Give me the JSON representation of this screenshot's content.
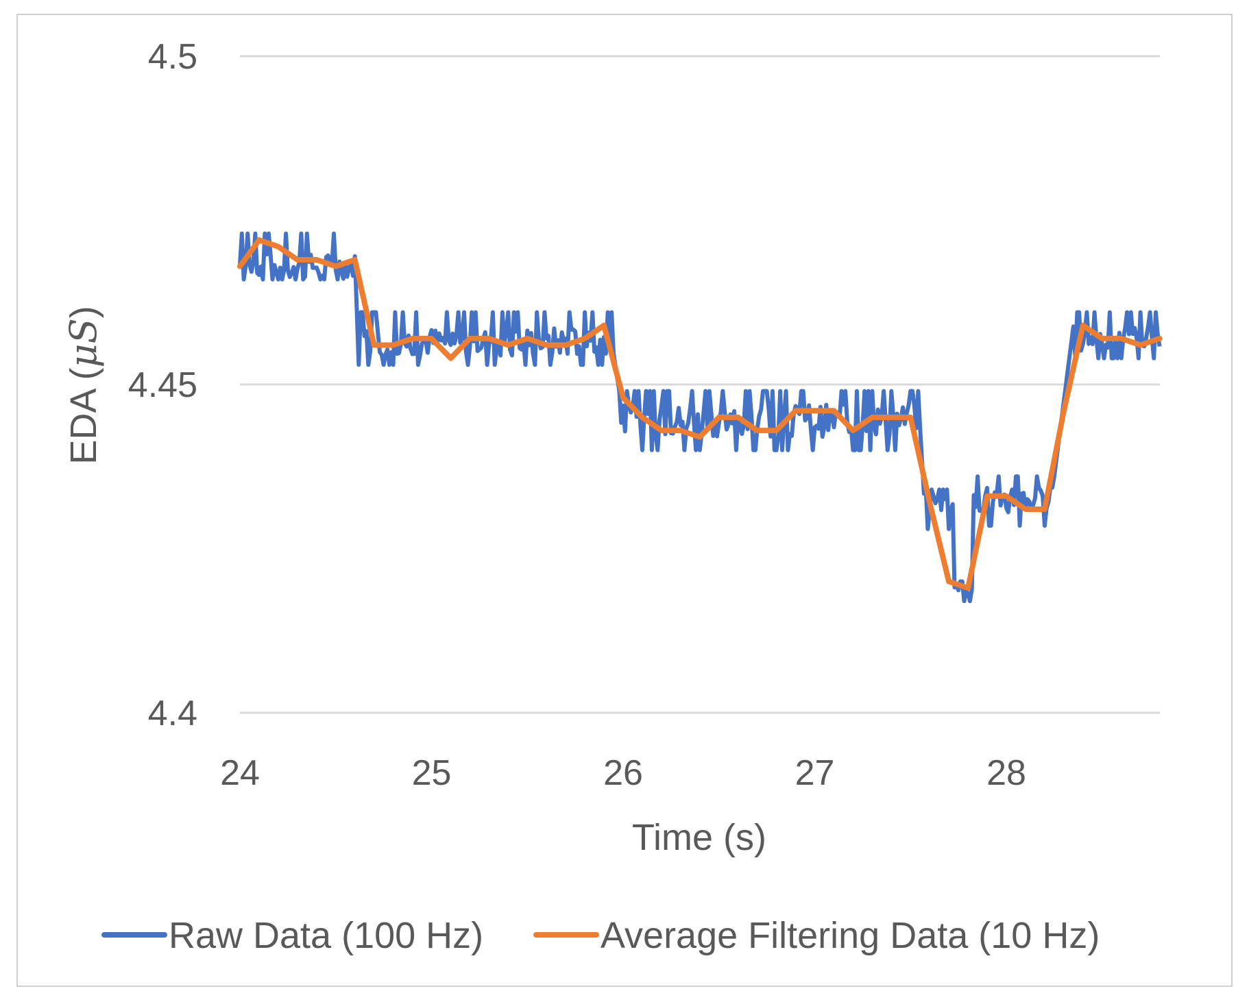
{
  "chart_data": {
    "type": "line",
    "title": "",
    "xlabel": "Time (s)",
    "ylabel": "EDA (μS)",
    "ylabel_prefix": "EDA (",
    "ylabel_unit": "μS",
    "ylabel_suffix": ")",
    "xlim": [
      24,
      28.8
    ],
    "ylim": [
      4.4,
      4.5
    ],
    "xticks": [
      24,
      25,
      26,
      27,
      28
    ],
    "xtick_labels": [
      "24",
      "25",
      "26",
      "27",
      "28"
    ],
    "yticks": [
      4.4,
      4.45,
      4.5
    ],
    "ytick_labels": [
      "4.4",
      "4.45",
      "4.5"
    ],
    "grid": "horizontal",
    "legend_position": "bottom",
    "series": [
      {
        "name": "Raw Data (100 Hz)",
        "color": "#4472c4",
        "kind": "step",
        "segments": [
          {
            "x0": 24.0,
            "x1": 24.6,
            "level": 4.468,
            "high": 4.473,
            "low": 4.466
          },
          {
            "x0": 24.62,
            "x1": 25.95,
            "level": 4.4565,
            "high": 4.461,
            "low": 4.453
          },
          {
            "x0": 25.98,
            "x1": 27.55,
            "level": 4.4445,
            "high": 4.449,
            "low": 4.44
          },
          {
            "x0": 27.57,
            "x1": 27.72,
            "level": 4.432,
            "high": 4.434,
            "low": 4.428
          },
          {
            "x0": 27.73,
            "x1": 27.82,
            "level": 4.419,
            "high": 4.42,
            "low": 4.417
          },
          {
            "x0": 27.83,
            "x1": 28.25,
            "level": 4.4325,
            "high": 4.436,
            "low": 4.4285
          },
          {
            "x0": 28.35,
            "x1": 28.8,
            "level": 4.457,
            "high": 4.461,
            "low": 4.454
          }
        ]
      },
      {
        "name": "Average Filtering Data (10 Hz)",
        "color": "#ed7d31",
        "kind": "line",
        "x": [
          24.0,
          24.1,
          24.2,
          24.3,
          24.4,
          24.5,
          24.6,
          24.7,
          24.8,
          24.9,
          25.0,
          25.1,
          25.2,
          25.3,
          25.4,
          25.5,
          25.6,
          25.7,
          25.8,
          25.9,
          26.0,
          26.1,
          26.2,
          26.3,
          26.4,
          26.5,
          26.6,
          26.7,
          26.8,
          26.9,
          27.0,
          27.1,
          27.2,
          27.3,
          27.4,
          27.5,
          27.6,
          27.7,
          27.8,
          27.9,
          28.0,
          28.1,
          28.2,
          28.3,
          28.4,
          28.5,
          28.6,
          28.7,
          28.8
        ],
        "y": [
          4.468,
          4.472,
          4.471,
          4.469,
          4.469,
          4.468,
          4.469,
          4.456,
          4.456,
          4.457,
          4.457,
          4.454,
          4.457,
          4.457,
          4.456,
          4.457,
          4.456,
          4.456,
          4.457,
          4.459,
          4.448,
          4.445,
          4.443,
          4.443,
          4.442,
          4.445,
          4.445,
          4.443,
          4.443,
          4.446,
          4.446,
          4.446,
          4.443,
          4.445,
          4.445,
          4.445,
          4.432,
          4.42,
          4.419,
          4.433,
          4.433,
          4.431,
          4.431,
          4.446,
          4.459,
          4.457,
          4.457,
          4.456,
          4.457
        ]
      }
    ]
  }
}
